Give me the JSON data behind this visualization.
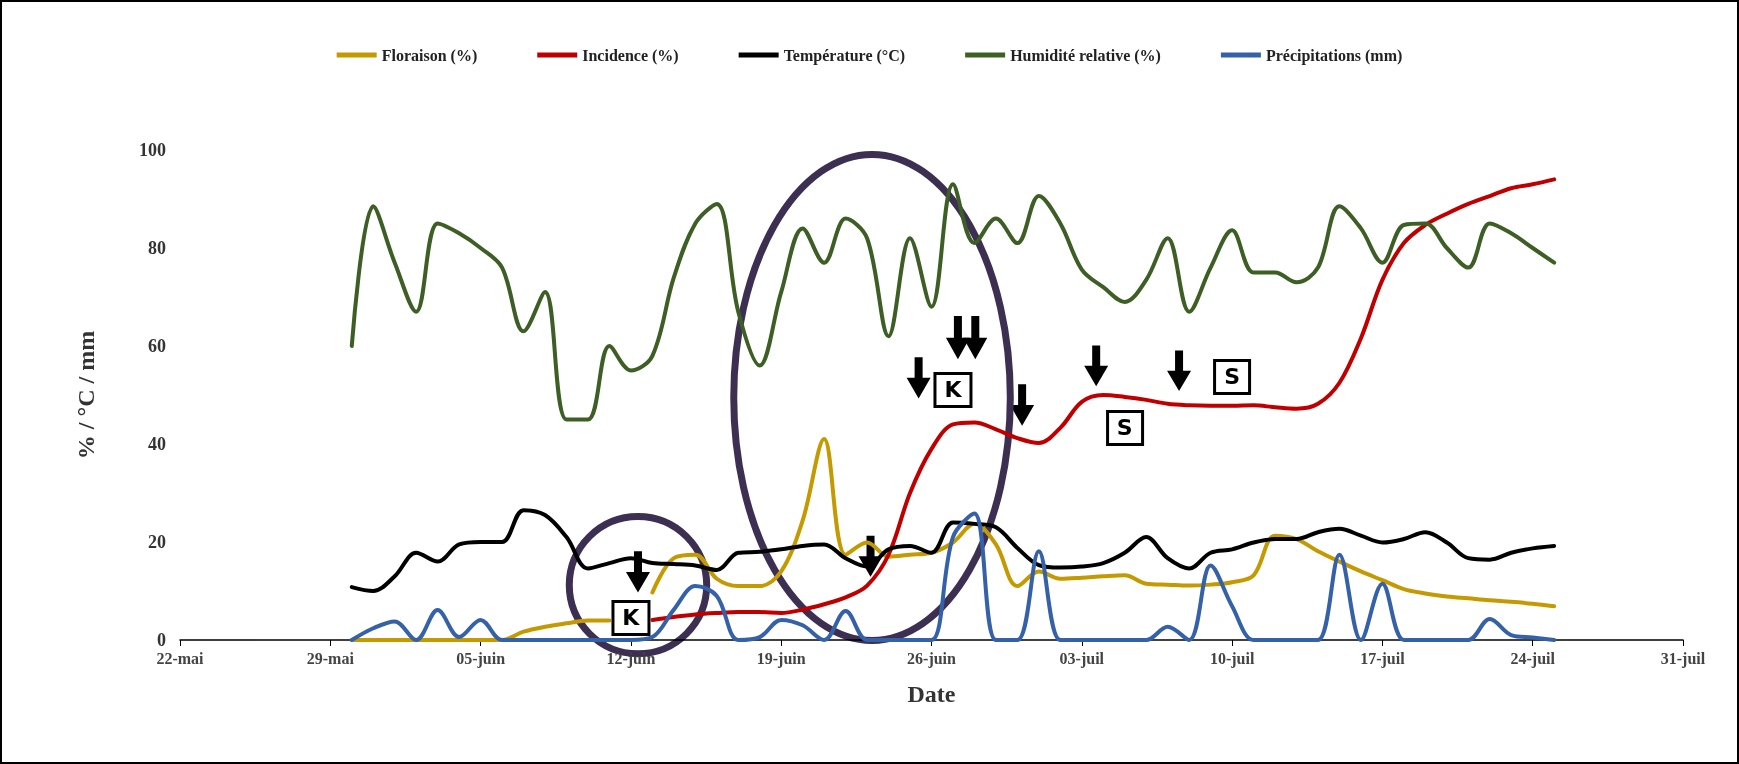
{
  "chart_data": {
    "type": "line",
    "xlabel": "Date",
    "ylabel": "% / °C / mm",
    "x": [
      "--05-30",
      "--05-31",
      "--06-01",
      "--06-02",
      "--06-03",
      "--06-04",
      "--06-05",
      "--06-06",
      "--06-07",
      "--06-08",
      "--06-09",
      "--06-10",
      "--06-11",
      "--06-12",
      "--06-13",
      "--06-14",
      "--06-15",
      "--06-16",
      "--06-17",
      "--06-18",
      "--06-19",
      "--06-20",
      "--06-21",
      "--06-22",
      "--06-23",
      "--06-24",
      "--06-25",
      "--06-26",
      "--06-27",
      "--06-28",
      "--06-29",
      "--06-30",
      "--07-01",
      "--07-02",
      "--07-03",
      "--07-04",
      "--07-05",
      "--07-06",
      "--07-07",
      "--07-08",
      "--07-09",
      "--07-10",
      "--07-11",
      "--07-12",
      "--07-13",
      "--07-14",
      "--07-15",
      "--07-16",
      "--07-17",
      "--07-18",
      "--07-19",
      "--07-20",
      "--07-21",
      "--07-22",
      "--07-23",
      "--07-24",
      "--07-25"
    ],
    "series": [
      {
        "name": "Floraison (%)",
        "color": "#c49a00",
        "values": [
          0,
          0,
          0,
          0,
          0,
          0,
          0,
          0,
          1.7,
          2.7,
          3.4,
          4,
          4,
          null,
          9.7,
          16.7,
          17.4,
          12.5,
          11,
          11,
          14,
          24.4,
          41,
          17.4,
          19.9,
          17,
          17.4,
          17.8,
          19.9,
          23.7,
          19.5,
          11,
          14,
          12.5,
          12.7,
          13,
          13.2,
          11.5,
          11.3,
          11.1,
          11.3,
          11.8,
          13.2,
          21.3,
          20.6,
          18.1,
          16,
          14,
          12.2,
          10.4,
          9.5,
          8.9,
          8.5,
          8.1,
          7.8,
          7.4,
          6.9
        ]
      },
      {
        "name": "Incidence (%)",
        "color": "#c00000",
        "values": [
          null,
          null,
          null,
          null,
          null,
          null,
          null,
          null,
          null,
          null,
          null,
          null,
          null,
          null,
          4.1,
          4.7,
          5.2,
          5.5,
          5.7,
          5.7,
          5.5,
          6.2,
          7.3,
          8.7,
          11.1,
          17.4,
          30,
          39,
          44,
          44.4,
          43,
          41.2,
          40.2,
          43.3,
          48.6,
          50,
          49.6,
          49,
          48.2,
          47.9,
          47.8,
          47.8,
          47.9,
          47.5,
          47.2,
          48.2,
          52.5,
          61.6,
          73.5,
          81,
          84.7,
          87,
          89,
          90.6,
          92.2,
          93,
          94
        ]
      },
      {
        "name": "Température (°C)",
        "color": "#000000",
        "values": [
          10.8,
          10,
          13,
          17.8,
          16,
          19.5,
          20,
          20,
          26.5,
          25.5,
          21,
          14.6,
          15.7,
          16.7,
          15.7,
          15.5,
          15.2,
          14.3,
          17.8,
          18,
          18.5,
          19.2,
          19.5,
          16.7,
          15,
          18.5,
          19.2,
          17.8,
          24,
          23.7,
          23,
          18.8,
          15.3,
          14.8,
          15,
          15.7,
          17.8,
          21,
          16.7,
          14.6,
          17.8,
          18.5,
          19.9,
          20.6,
          20.6,
          22,
          22.7,
          21.3,
          19.9,
          20.6,
          22,
          19.9,
          16.7,
          16.4,
          17.8,
          18.7,
          19.2
        ]
      },
      {
        "name": "Humidité relative (%)",
        "color": "#3d5e24",
        "values": [
          60,
          88.5,
          77,
          67,
          85,
          83,
          80,
          76,
          63,
          71,
          45,
          45,
          60,
          55,
          58,
          74,
          85,
          89,
          67,
          56,
          71,
          84,
          77,
          86,
          82,
          62,
          82,
          68,
          93,
          81,
          86,
          81,
          90.6,
          85,
          75.6,
          72,
          69,
          73.5,
          82,
          67,
          76,
          83.6,
          75,
          75,
          73,
          76,
          88.5,
          84,
          77,
          84.7,
          85,
          80,
          76,
          85,
          83,
          80,
          77
        ]
      },
      {
        "name": "Précipitations (mm)",
        "color": "#3561a8",
        "values": [
          0,
          2.4,
          3.8,
          0,
          6.1,
          0.6,
          4.1,
          0,
          0,
          0,
          0,
          0,
          0,
          0,
          0.6,
          6.2,
          11,
          9,
          0,
          0.6,
          4.1,
          3,
          0,
          5.9,
          0,
          0,
          0,
          0,
          21,
          25.8,
          0,
          0,
          18.1,
          0,
          0,
          0,
          0,
          0,
          2.7,
          0,
          15.2,
          6.9,
          0,
          0,
          0,
          0,
          17.4,
          0,
          11.5,
          0,
          0,
          0,
          0,
          4.3,
          1,
          0.5,
          0
        ]
      }
    ],
    "xlim": [
      "--05-22",
      "--07-31"
    ],
    "xticks": [
      {
        "value": "--05-22",
        "label": "22-mai"
      },
      {
        "value": "--05-29",
        "label": "29-mai"
      },
      {
        "value": "--06-05",
        "label": "05-juin"
      },
      {
        "value": "--06-12",
        "label": "12-juin"
      },
      {
        "value": "--06-19",
        "label": "19-juin"
      },
      {
        "value": "--06-26",
        "label": "26-juin"
      },
      {
        "value": "--07-03",
        "label": "03-juil"
      },
      {
        "value": "--07-10",
        "label": "10-juil"
      },
      {
        "value": "--07-17",
        "label": "17-juil"
      },
      {
        "value": "--07-24",
        "label": "24-juil"
      },
      {
        "value": "--07-31",
        "label": "31-juil"
      }
    ],
    "ylim": [
      0,
      100
    ],
    "yticks": [
      0,
      20,
      40,
      60,
      80,
      100
    ],
    "annotations": [
      {
        "text": "K",
        "x": "--06-12",
        "y": 4.5
      },
      {
        "text": "K",
        "x": "--06-27",
        "y": 51
      },
      {
        "text": "S",
        "x": "--07-05",
        "y": 43.3
      },
      {
        "text": "S",
        "x": "--07-10",
        "y": 53.7
      }
    ],
    "grid": false,
    "legend": "top",
    "marker": "none",
    "line_style": "solid"
  }
}
